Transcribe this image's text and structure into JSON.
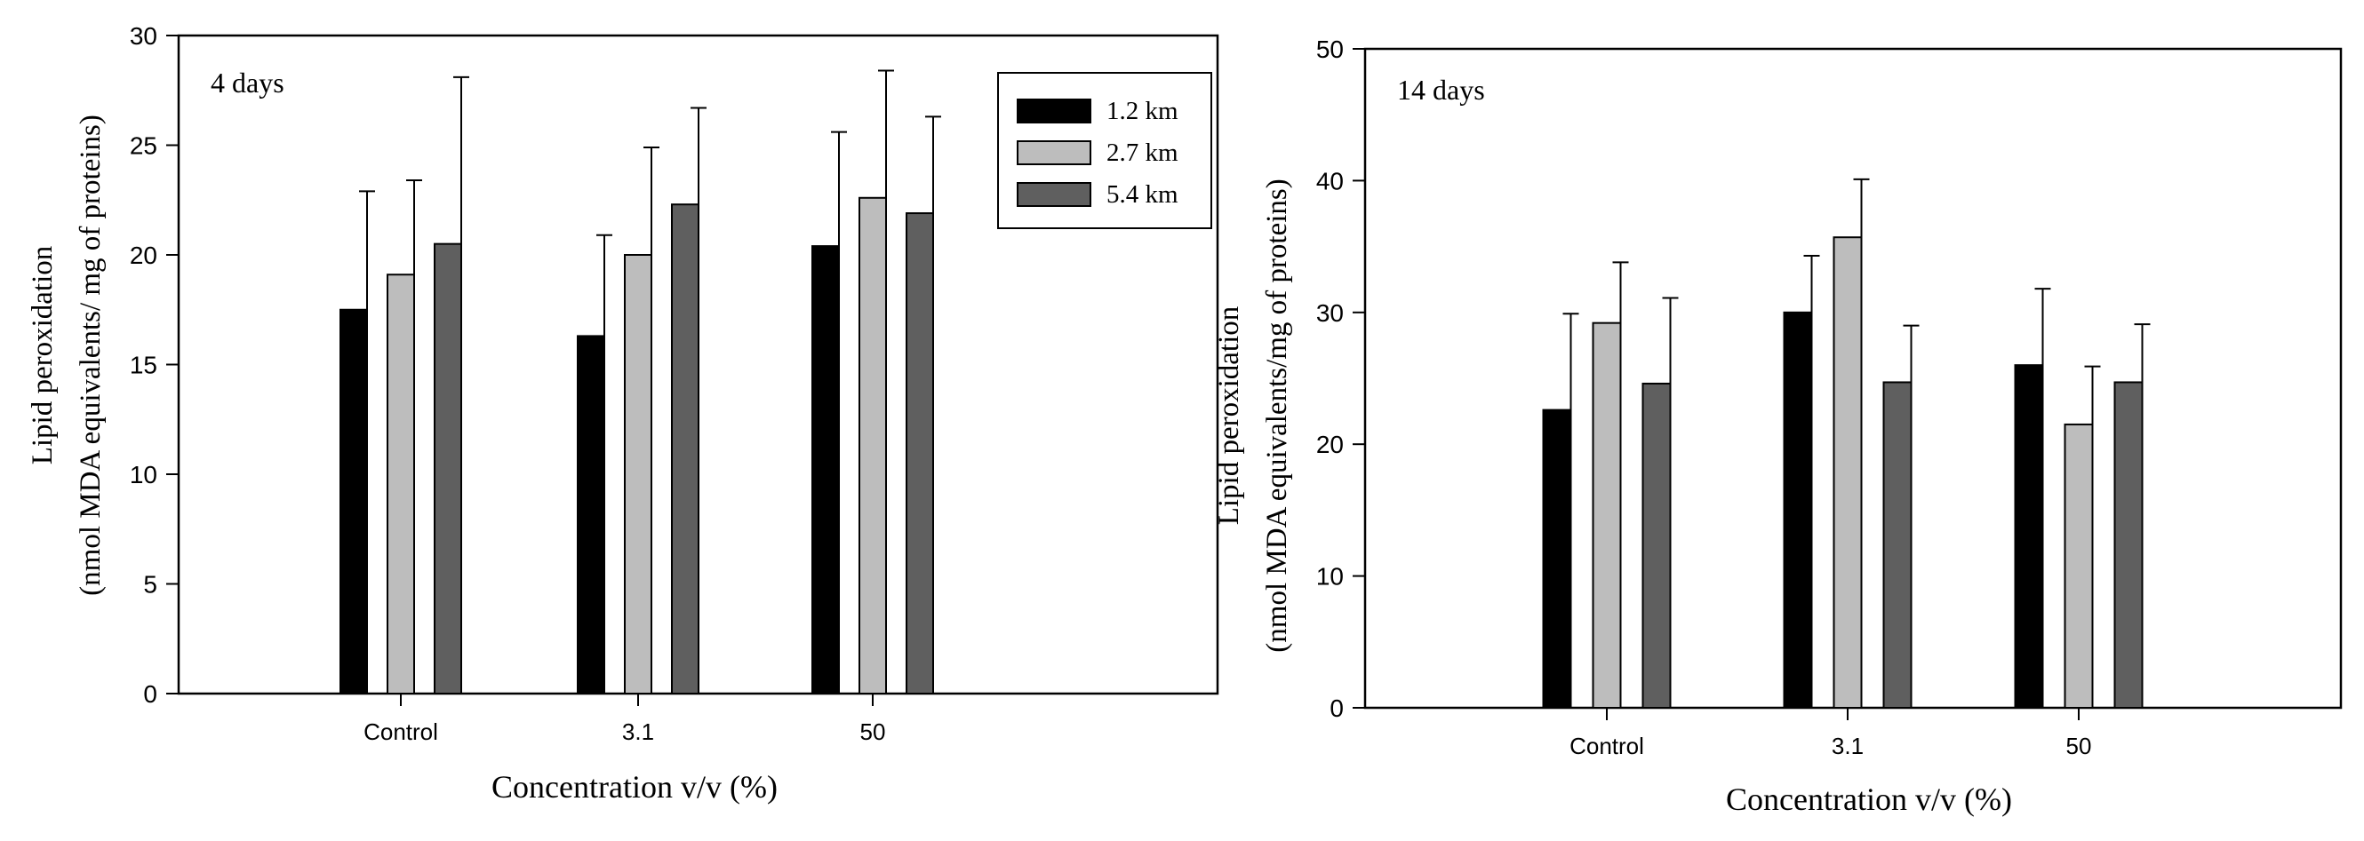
{
  "chart_data": [
    {
      "type": "bar",
      "panel_label": "4 days",
      "xlabel": "Concentration v/v (%)",
      "ylabel_line1": "Lipid peroxidation",
      "ylabel_line2": "(nmol MDA equivalents/ mg of proteins)",
      "ylim": [
        0,
        30
      ],
      "yticks": [
        0,
        5,
        10,
        15,
        20,
        25,
        30
      ],
      "categories": [
        "Control",
        "3.1",
        "50"
      ],
      "legend_position": "top-right",
      "series": [
        {
          "name": "1.2 km",
          "color": "#000000",
          "values": [
            17.5,
            16.3,
            20.4
          ],
          "errors": [
            5.4,
            4.6,
            5.2
          ]
        },
        {
          "name": "2.7 km",
          "color": "#bdbdbd",
          "values": [
            19.1,
            20.0,
            22.6
          ],
          "errors": [
            4.3,
            4.9,
            5.8
          ]
        },
        {
          "name": "5.4 km",
          "color": "#5f5f5f",
          "values": [
            20.5,
            22.3,
            21.9
          ],
          "errors": [
            7.6,
            4.4,
            4.4
          ]
        }
      ]
    },
    {
      "type": "bar",
      "panel_label": "14 days",
      "xlabel": "Concentration v/v (%)",
      "ylabel_line1": "Lipid peroxidation",
      "ylabel_line2": "(nmol MDA equivalents/mg of proteins)",
      "ylim": [
        0,
        50
      ],
      "yticks": [
        0,
        10,
        20,
        30,
        40,
        50
      ],
      "categories": [
        "Control",
        "3.1",
        "50"
      ],
      "series": [
        {
          "name": "1.2 km",
          "color": "#000000",
          "values": [
            22.6,
            30.0,
            26.0
          ],
          "errors": [
            7.3,
            4.3,
            5.8
          ]
        },
        {
          "name": "2.7 km",
          "color": "#bdbdbd",
          "values": [
            29.2,
            35.7,
            21.5
          ],
          "errors": [
            4.6,
            4.4,
            4.4
          ]
        },
        {
          "name": "5.4 km",
          "color": "#5f5f5f",
          "values": [
            24.6,
            24.7,
            24.7
          ],
          "errors": [
            6.5,
            4.3,
            4.4
          ]
        }
      ]
    }
  ]
}
